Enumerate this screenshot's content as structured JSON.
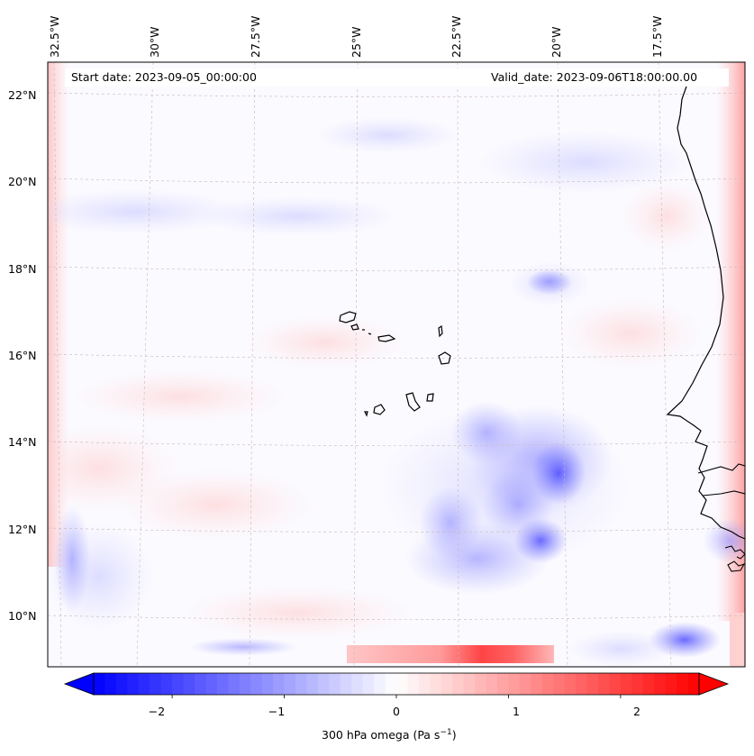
{
  "map": {
    "start_label": "Start date: 2023-09-05_00:00:00",
    "valid_label": "Valid_date: 2023-09-06T18:00:00.00",
    "lon_ticks": [
      "32.5°W",
      "30°W",
      "27.5°W",
      "25°W",
      "22.5°W",
      "20°W",
      "17.5°W"
    ],
    "lat_ticks": [
      "22°N",
      "20°N",
      "18°N",
      "16°N",
      "14°N",
      "12°N",
      "10°N"
    ],
    "field": "300 hPa omega",
    "units": "Pa s⁻¹"
  },
  "colorbar": {
    "label_main": "300 hPa omega (Pa s",
    "label_exp": "−1",
    "label_close": ")",
    "ticks": [
      "−2",
      "−1",
      "0",
      "1",
      "2"
    ],
    "vmin": -2.7,
    "vmax": 2.7,
    "colors": {
      "negative": "#0000ff",
      "zero": "#ffffff",
      "positive": "#ff0000"
    }
  }
}
